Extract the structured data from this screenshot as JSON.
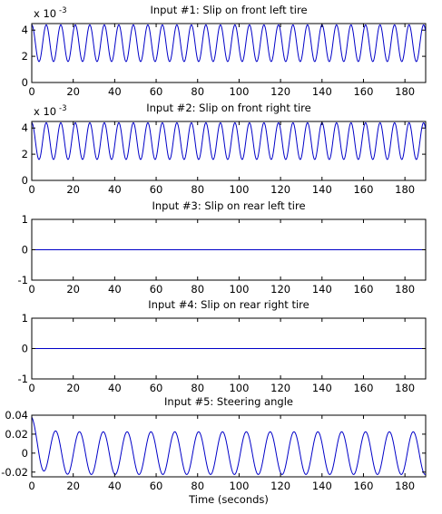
{
  "chart_data": [
    {
      "type": "line",
      "title": "Input #1: Slip on front left tire",
      "xlabel": "",
      "ylabel": "",
      "exponent_label": "x 10",
      "exponent_power": "-3",
      "xlim": [
        0,
        190
      ],
      "ylim": [
        0,
        4.5
      ],
      "xticks": [
        "0",
        "20",
        "40",
        "60",
        "80",
        "100",
        "120",
        "140",
        "160",
        "180"
      ],
      "yticks": [
        "0",
        "2",
        "4"
      ],
      "ytick_values": [
        0,
        2,
        4
      ],
      "grid": false,
      "color": "#0000c8",
      "series": [
        {
          "wave": {
            "kind": "sine",
            "mean": 3.0,
            "amplitude": 1.4,
            "period": 7.0,
            "phase_deg": 90,
            "x_start": 0,
            "x_end": 190
          }
        }
      ]
    },
    {
      "type": "line",
      "title": "Input #2: Slip on front right tire",
      "xlabel": "",
      "ylabel": "",
      "exponent_label": "x 10",
      "exponent_power": "-3",
      "xlim": [
        0,
        190
      ],
      "ylim": [
        0,
        4.5
      ],
      "xticks": [
        "0",
        "20",
        "40",
        "60",
        "80",
        "100",
        "120",
        "140",
        "160",
        "180"
      ],
      "yticks": [
        "0",
        "2",
        "4"
      ],
      "ytick_values": [
        0,
        2,
        4
      ],
      "grid": false,
      "color": "#0000c8",
      "series": [
        {
          "wave": {
            "kind": "sine",
            "mean": 3.0,
            "amplitude": 1.4,
            "period": 7.0,
            "phase_deg": 90,
            "x_start": 0,
            "x_end": 190
          }
        }
      ]
    },
    {
      "type": "line",
      "title": "Input #3: Slip on rear left tire",
      "xlabel": "",
      "ylabel": "",
      "xlim": [
        0,
        190
      ],
      "ylim": [
        -1,
        1
      ],
      "xticks": [
        "0",
        "20",
        "40",
        "60",
        "80",
        "100",
        "120",
        "140",
        "160",
        "180"
      ],
      "yticks": [
        "-1",
        "0",
        "1"
      ],
      "ytick_values": [
        -1,
        0,
        1
      ],
      "grid": false,
      "color": "#0000c8",
      "series": [
        {
          "x": [
            0,
            190
          ],
          "y": [
            0,
            0
          ]
        }
      ]
    },
    {
      "type": "line",
      "title": "Input #4: Slip on rear right tire",
      "xlabel": "",
      "ylabel": "",
      "xlim": [
        0,
        190
      ],
      "ylim": [
        -1,
        1
      ],
      "xticks": [
        "0",
        "20",
        "40",
        "60",
        "80",
        "100",
        "120",
        "140",
        "160",
        "180"
      ],
      "yticks": [
        "-1",
        "0",
        "1"
      ],
      "ytick_values": [
        -1,
        0,
        1
      ],
      "grid": false,
      "color": "#0000c8",
      "series": [
        {
          "x": [
            0,
            190
          ],
          "y": [
            0,
            0
          ]
        }
      ]
    },
    {
      "type": "line",
      "title": "Input #5: Steering angle",
      "xlabel": "Time (seconds)",
      "ylabel": "",
      "xlim": [
        0,
        190
      ],
      "ylim": [
        -0.025,
        0.04
      ],
      "xticks": [
        "0",
        "20",
        "40",
        "60",
        "80",
        "100",
        "120",
        "140",
        "160",
        "180"
      ],
      "yticks": [
        "-0.02",
        "0",
        "0.02",
        "0.04"
      ],
      "ytick_values": [
        -0.02,
        0,
        0.02,
        0.04
      ],
      "grid": false,
      "color": "#0000c8",
      "series": [
        {
          "wave": {
            "kind": "sine",
            "mean": 0.0,
            "amplitude": 0.0225,
            "period": 11.5,
            "phase_deg": 90,
            "initial_peak": 0.038,
            "initial_decay": 4.0,
            "x_start": 0,
            "x_end": 190
          }
        }
      ]
    }
  ]
}
